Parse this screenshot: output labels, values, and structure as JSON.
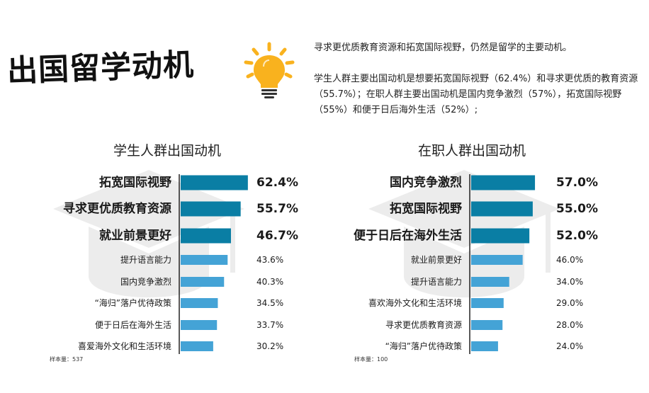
{
  "header": {
    "title": "出国留学动机",
    "intro_line1": "寻求更优质教育资源和拓宽国际视野，仍然是留学的主要动机。",
    "intro_line2": "学生人群主要出国动机是想要拓宽国际视野（62.4%）和寻求更优质的教育资源（55.7%）；在职人群主要出国动机是国内竞争激烈（57%），拓宽国际视野（55%）和便于日后海外生活（52%）;"
  },
  "icons": {
    "bulb": "lightbulb-icon",
    "watermark": "graduation-cap-icon"
  },
  "colors": {
    "top_bar": "#0a7ea4",
    "other_bar": "#44a3d6",
    "bulb": "#f9b21e",
    "divider": "#222222"
  },
  "chart_data": [
    {
      "type": "bar",
      "orientation": "horizontal",
      "title": "学生人群出国动机",
      "sample_label": "样本量：537",
      "categories": [
        "拓宽国际视野",
        "寻求更优质教育资源",
        "就业前景更好",
        "提升语言能力",
        "国内竞争激烈",
        "“海归”落户优待政策",
        "便于日后在海外生活",
        "喜爱海外文化和生活环境"
      ],
      "values": [
        62.4,
        55.7,
        46.7,
        43.6,
        40.3,
        34.5,
        33.7,
        30.2
      ],
      "value_labels": [
        "62.4%",
        "55.7%",
        "46.7%",
        "43.6%",
        "40.3%",
        "34.5%",
        "33.7%",
        "30.2%"
      ],
      "highlight_top": 3
    },
    {
      "type": "bar",
      "orientation": "horizontal",
      "title": "在职人群出国动机",
      "sample_label": "样本量：100",
      "categories": [
        "国内竞争激烈",
        "拓宽国际视野",
        "便于日后在海外生活",
        "就业前景更好",
        "提升语言能力",
        "喜欢海外文化和生活环境",
        "寻求更优质教育资源",
        "“海归”落户优待政策"
      ],
      "values": [
        57.0,
        55.0,
        52.0,
        46.0,
        34.0,
        29.0,
        28.0,
        24.0
      ],
      "value_labels": [
        "57.0%",
        "55.0%",
        "52.0%",
        "46.0%",
        "34.0%",
        "29.0%",
        "28.0%",
        "24.0%"
      ],
      "highlight_top": 3
    }
  ]
}
